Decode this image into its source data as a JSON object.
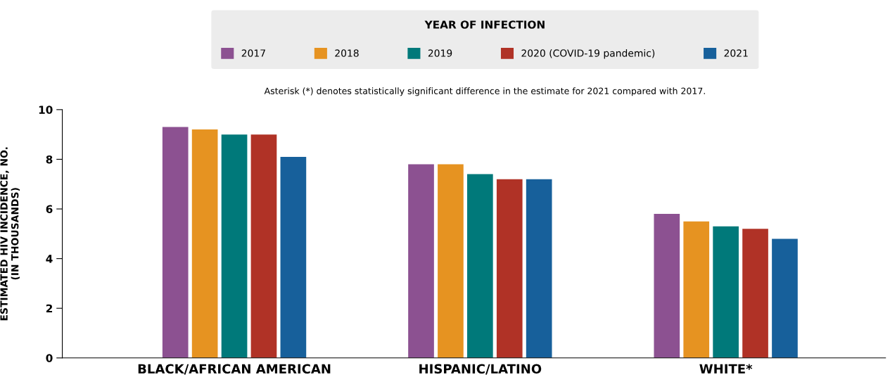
{
  "chart_data": {
    "type": "bar",
    "legend_title": "YEAR OF INFECTION",
    "ylabel": "ESTIMATED HIV INCIDENCE, NO.\n(IN THOUSANDS)",
    "annotations": [
      "Asterisk (*) denotes statistically significant difference in the estimate for 2021 compared with 2017."
    ],
    "categories": [
      "BLACK/AFRICAN AMERICAN",
      "HISPANIC/LATINO",
      "WHITE*"
    ],
    "series": [
      {
        "name": "2017",
        "color": "#8c5191",
        "values": [
          9.3,
          7.8,
          5.8
        ]
      },
      {
        "name": "2018",
        "color": "#e69321",
        "values": [
          9.2,
          7.8,
          5.5
        ]
      },
      {
        "name": "2019",
        "color": "#00797a",
        "values": [
          9.0,
          7.4,
          5.3
        ]
      },
      {
        "name": "2020 (COVID-19 pandemic)",
        "color": "#b03226",
        "values": [
          9.0,
          7.2,
          5.2
        ]
      },
      {
        "name": "2021",
        "color": "#17609b",
        "values": [
          8.1,
          7.2,
          4.8
        ]
      }
    ],
    "ylim": [
      0,
      10
    ],
    "yticks": [
      0,
      2,
      4,
      6,
      8,
      10
    ],
    "legend": "top"
  }
}
